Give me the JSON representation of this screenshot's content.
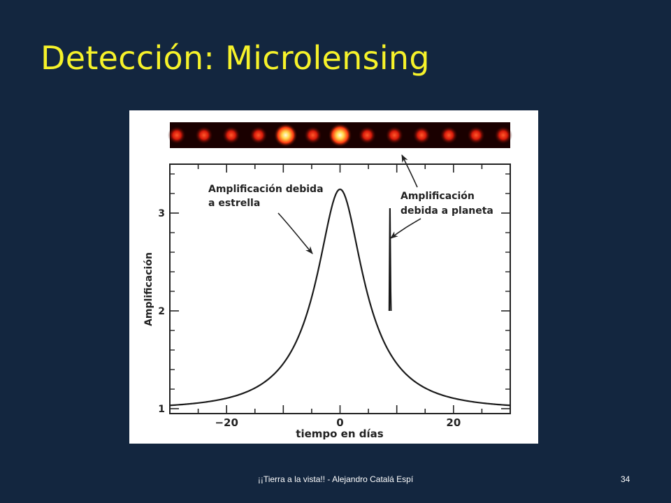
{
  "slide": {
    "title": "Detección: Microlensing",
    "footer": "¡¡Tierra a la vista!! - Alejandro Catalá Espí",
    "page_number": "34"
  },
  "colors": {
    "background": "#13263f",
    "title": "#f6f22a",
    "strip_dark": "#1a0000",
    "strip_glow": "#ff2a00",
    "strip_peak": "#fff6b0"
  },
  "chart_data": {
    "type": "line",
    "title": "",
    "xlabel": "tiempo en días",
    "ylabel": "Amplificación",
    "xlim": [
      -30,
      30
    ],
    "ylim": [
      0.95,
      3.5
    ],
    "x_ticks": [
      -20,
      0,
      20
    ],
    "y_ticks": [
      1,
      2,
      3
    ],
    "grid": false,
    "legend": "none",
    "series": [
      {
        "model": "point-lens",
        "u0": 0.32,
        "tE_days": 12.5,
        "x": [
          -30,
          -25,
          -20,
          -15,
          -10,
          -5,
          0,
          5,
          10,
          15,
          20,
          25,
          30
        ],
        "y": [
          1.14,
          1.2,
          1.3,
          1.49,
          1.86,
          2.54,
          3.23,
          2.54,
          1.86,
          1.49,
          1.3,
          1.2,
          1.14
        ]
      }
    ],
    "planet_spike": {
      "x": 8.8,
      "y_min": 2.0,
      "y_max": 3.05
    },
    "annotations": [
      {
        "lines": [
          "Amplificación debida",
          "a estrella"
        ]
      },
      {
        "lines": [
          "Amplificación",
          "debida a planeta"
        ]
      }
    ],
    "strip": {
      "spot_count": 13,
      "bright_spots": [
        4,
        6
      ]
    }
  }
}
